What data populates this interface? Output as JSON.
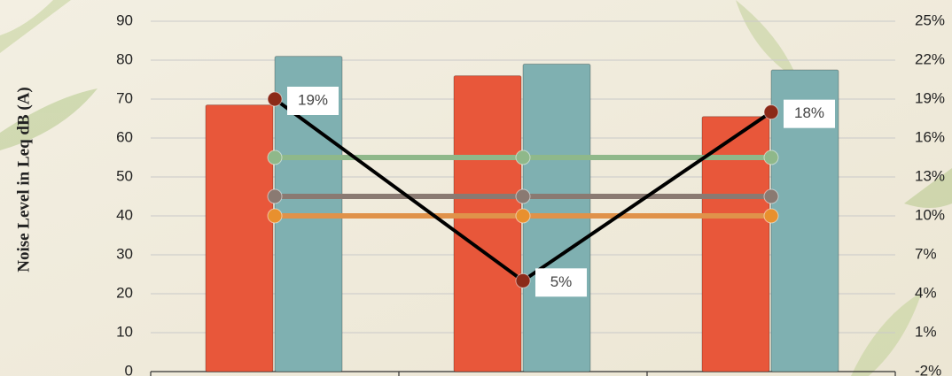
{
  "chart_data": {
    "type": "bar",
    "y_label": "Noise Level in Leq dB (A)",
    "categories": [
      null,
      null,
      null
    ],
    "ylim": [
      0,
      90
    ],
    "yticks": [
      0,
      10,
      20,
      30,
      40,
      50,
      60,
      70,
      80,
      90
    ],
    "y2lim": [
      -2,
      25
    ],
    "y2ticks": [
      {
        "value": -2,
        "label": "-2%"
      },
      {
        "value": 1,
        "label": "1%"
      },
      {
        "value": 4,
        "label": "4%"
      },
      {
        "value": 7,
        "label": "7%"
      },
      {
        "value": 10,
        "label": "10%"
      },
      {
        "value": 13,
        "label": "13%"
      },
      {
        "value": 16,
        "label": "16%"
      },
      {
        "value": 19,
        "label": "19%"
      },
      {
        "value": 22,
        "label": "22%"
      },
      {
        "value": 25,
        "label": "25%"
      }
    ],
    "grid": true,
    "series": [
      {
        "type": "bar",
        "color": "#e8573a",
        "values": [
          68.5,
          76,
          65.5
        ]
      },
      {
        "type": "bar",
        "color": "#7fb0b1",
        "values": [
          81,
          79,
          77.5
        ]
      },
      {
        "type": "line",
        "color": "#8fb88a",
        "marker_color": "#8fb88a",
        "values": [
          55,
          55,
          55
        ]
      },
      {
        "type": "line",
        "color": "#8a7a72",
        "marker_color": "#8a7a72",
        "values": [
          45,
          45,
          45
        ]
      },
      {
        "type": "line",
        "color": "#e0924a",
        "marker_color": "#e8902e",
        "values": [
          40,
          40,
          40
        ]
      },
      {
        "type": "line",
        "axis": "y2",
        "color": "#000000",
        "marker_color": "#8b2a18",
        "values": [
          19,
          5,
          18
        ],
        "value_labels": [
          "19%",
          "5%",
          "18%"
        ]
      }
    ]
  }
}
